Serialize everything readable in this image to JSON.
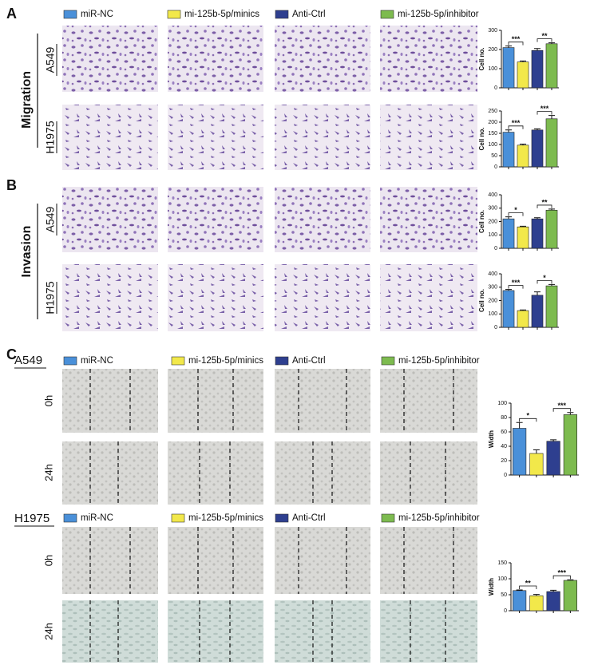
{
  "panel_labels": [
    "A",
    "B",
    "C"
  ],
  "legend": [
    "miR-NC",
    "mi-125b-5p/minics",
    "Anti-Ctrl",
    "mi-125b-5p/inhibitor"
  ],
  "legend_colors": [
    "#4a90d9",
    "#f2e84a",
    "#2e3f8f",
    "#7dbb4f"
  ],
  "migration": {
    "title": "Migration",
    "rows": [
      "A549",
      "H1975"
    ]
  },
  "invasion": {
    "title": "Invasion",
    "rows": [
      "A549",
      "H1975"
    ]
  },
  "wound": {
    "rows": [
      "A549",
      "H1975"
    ],
    "times": [
      "0h",
      "24h"
    ]
  },
  "chart_data": [
    {
      "type": "bar",
      "ylabel": "Cell no.",
      "categories": [
        null,
        null,
        null,
        null
      ],
      "values": [
        210,
        135,
        195,
        230
      ],
      "errors": [
        8,
        5,
        10,
        5
      ],
      "colors": [
        "#4a90d9",
        "#f2e84a",
        "#2e3f8f",
        "#7dbb4f"
      ],
      "ylim": [
        0,
        300
      ],
      "yticks": [
        0,
        100,
        200,
        300
      ],
      "annotations": [
        {
          "pair": [
            0,
            1
          ],
          "label": "***"
        },
        {
          "pair": [
            2,
            3
          ],
          "label": "**"
        }
      ]
    },
    {
      "type": "bar",
      "ylabel": "Cell no.",
      "categories": [
        null,
        null,
        null,
        null
      ],
      "values": [
        155,
        97,
        165,
        215
      ],
      "errors": [
        10,
        5,
        5,
        15
      ],
      "colors": [
        "#4a90d9",
        "#f2e84a",
        "#2e3f8f",
        "#7dbb4f"
      ],
      "ylim": [
        0,
        250
      ],
      "yticks": [
        0,
        50,
        100,
        150,
        200,
        250
      ],
      "annotations": [
        {
          "pair": [
            0,
            1
          ],
          "label": "***"
        },
        {
          "pair": [
            2,
            3
          ],
          "label": "***"
        }
      ]
    },
    {
      "type": "bar",
      "ylabel": "Cell no.",
      "categories": [
        null,
        null,
        null,
        null
      ],
      "values": [
        220,
        160,
        220,
        285
      ],
      "errors": [
        15,
        5,
        8,
        8
      ],
      "colors": [
        "#4a90d9",
        "#f2e84a",
        "#2e3f8f",
        "#7dbb4f"
      ],
      "ylim": [
        0,
        400
      ],
      "yticks": [
        0,
        100,
        200,
        300,
        400
      ],
      "annotations": [
        {
          "pair": [
            0,
            1
          ],
          "label": "*"
        },
        {
          "pair": [
            2,
            3
          ],
          "label": "**"
        }
      ]
    },
    {
      "type": "bar",
      "ylabel": "Cell no.",
      "categories": [
        null,
        null,
        null,
        null
      ],
      "values": [
        275,
        125,
        240,
        310
      ],
      "errors": [
        8,
        5,
        25,
        10
      ],
      "colors": [
        "#4a90d9",
        "#f2e84a",
        "#2e3f8f",
        "#7dbb4f"
      ],
      "ylim": [
        0,
        400
      ],
      "yticks": [
        0,
        100,
        200,
        300,
        400
      ],
      "annotations": [
        {
          "pair": [
            0,
            1
          ],
          "label": "***"
        },
        {
          "pair": [
            2,
            3
          ],
          "label": "*"
        }
      ]
    },
    {
      "type": "bar",
      "ylabel": "Width",
      "categories": [
        null,
        null,
        null,
        null
      ],
      "values": [
        65,
        30,
        47,
        84
      ],
      "errors": [
        8,
        5,
        2,
        3
      ],
      "colors": [
        "#4a90d9",
        "#f2e84a",
        "#2e3f8f",
        "#7dbb4f"
      ],
      "ylim": [
        0,
        100
      ],
      "yticks": [
        0,
        20,
        40,
        60,
        80,
        100
      ],
      "annotations": [
        {
          "pair": [
            0,
            1
          ],
          "label": "*"
        },
        {
          "pair": [
            2,
            3
          ],
          "label": "***"
        }
      ]
    },
    {
      "type": "bar",
      "ylabel": "Width",
      "categories": [
        null,
        null,
        null,
        null
      ],
      "values": [
        63,
        47,
        60,
        95
      ],
      "errors": [
        2,
        4,
        4,
        2
      ],
      "colors": [
        "#4a90d9",
        "#f2e84a",
        "#2e3f8f",
        "#7dbb4f"
      ],
      "ylim": [
        0,
        150
      ],
      "yticks": [
        0,
        50,
        100,
        150
      ],
      "annotations": [
        {
          "pair": [
            0,
            1
          ],
          "label": "**"
        },
        {
          "pair": [
            2,
            3
          ],
          "label": "***"
        }
      ]
    }
  ]
}
